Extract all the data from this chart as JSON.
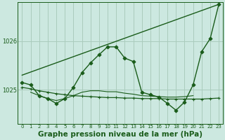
{
  "background_color": "#cce8e0",
  "grid_color": "#aaccbc",
  "line_color": "#1a5c1a",
  "marker_color": "#1a5c1a",
  "xlabel": "Graphe pression niveau de la mer (hPa)",
  "xlabel_fontsize": 7.5,
  "ylim": [
    1024.3,
    1026.8
  ],
  "xlim": [
    -0.5,
    23.5
  ],
  "yticks": [
    1025,
    1026
  ],
  "xticks": [
    0,
    1,
    2,
    3,
    4,
    5,
    6,
    7,
    8,
    9,
    10,
    11,
    12,
    13,
    14,
    15,
    16,
    17,
    18,
    19,
    20,
    21,
    22,
    23
  ],
  "series": [
    {
      "x": [
        0,
        23
      ],
      "y": [
        1025.3,
        1026.75
      ],
      "linewidth": 1.0,
      "marker": null
    },
    {
      "x": [
        0,
        1,
        2,
        3,
        4,
        5,
        6,
        7,
        8,
        9,
        10,
        11,
        12,
        13,
        14,
        15,
        16,
        17,
        18,
        19,
        20,
        21,
        22,
        23
      ],
      "y": [
        1025.15,
        1025.1,
        1024.88,
        1024.82,
        1024.72,
        1024.82,
        1025.05,
        1025.35,
        1025.55,
        1025.72,
        1025.88,
        1025.88,
        1025.65,
        1025.58,
        1024.95,
        1024.9,
        1024.85,
        1024.72,
        1024.58,
        1024.75,
        1025.1,
        1025.78,
        1026.05,
        1026.75
      ],
      "linewidth": 1.0,
      "marker": "D",
      "markersize": 2.5
    },
    {
      "x": [
        0,
        1,
        2,
        3,
        4,
        5,
        6,
        7,
        8,
        9,
        10,
        11,
        12,
        13,
        14,
        15,
        16,
        17,
        18,
        19,
        20,
        21,
        22,
        23
      ],
      "y": [
        1025.05,
        1025.02,
        1024.98,
        1024.95,
        1024.92,
        1024.9,
        1024.88,
        1024.87,
        1024.86,
        1024.85,
        1024.84,
        1024.84,
        1024.83,
        1024.83,
        1024.82,
        1024.82,
        1024.82,
        1024.81,
        1024.81,
        1024.81,
        1024.81,
        1024.81,
        1024.82,
        1024.83
      ],
      "linewidth": 0.9,
      "marker": "+",
      "markersize": 3.0
    },
    {
      "x": [
        1,
        2,
        3,
        4,
        5,
        6,
        7,
        8,
        9,
        10,
        11,
        12,
        13,
        14,
        15,
        16,
        17,
        18,
        19,
        20
      ],
      "y": [
        1024.95,
        1024.88,
        1024.82,
        1024.78,
        1024.82,
        1024.88,
        1024.95,
        1024.98,
        1024.98,
        1024.96,
        1024.96,
        1024.93,
        1024.91,
        1024.88,
        1024.87,
        1024.86,
        1024.85,
        1024.85,
        1024.86,
        1024.88
      ],
      "linewidth": 0.8,
      "marker": null
    }
  ]
}
